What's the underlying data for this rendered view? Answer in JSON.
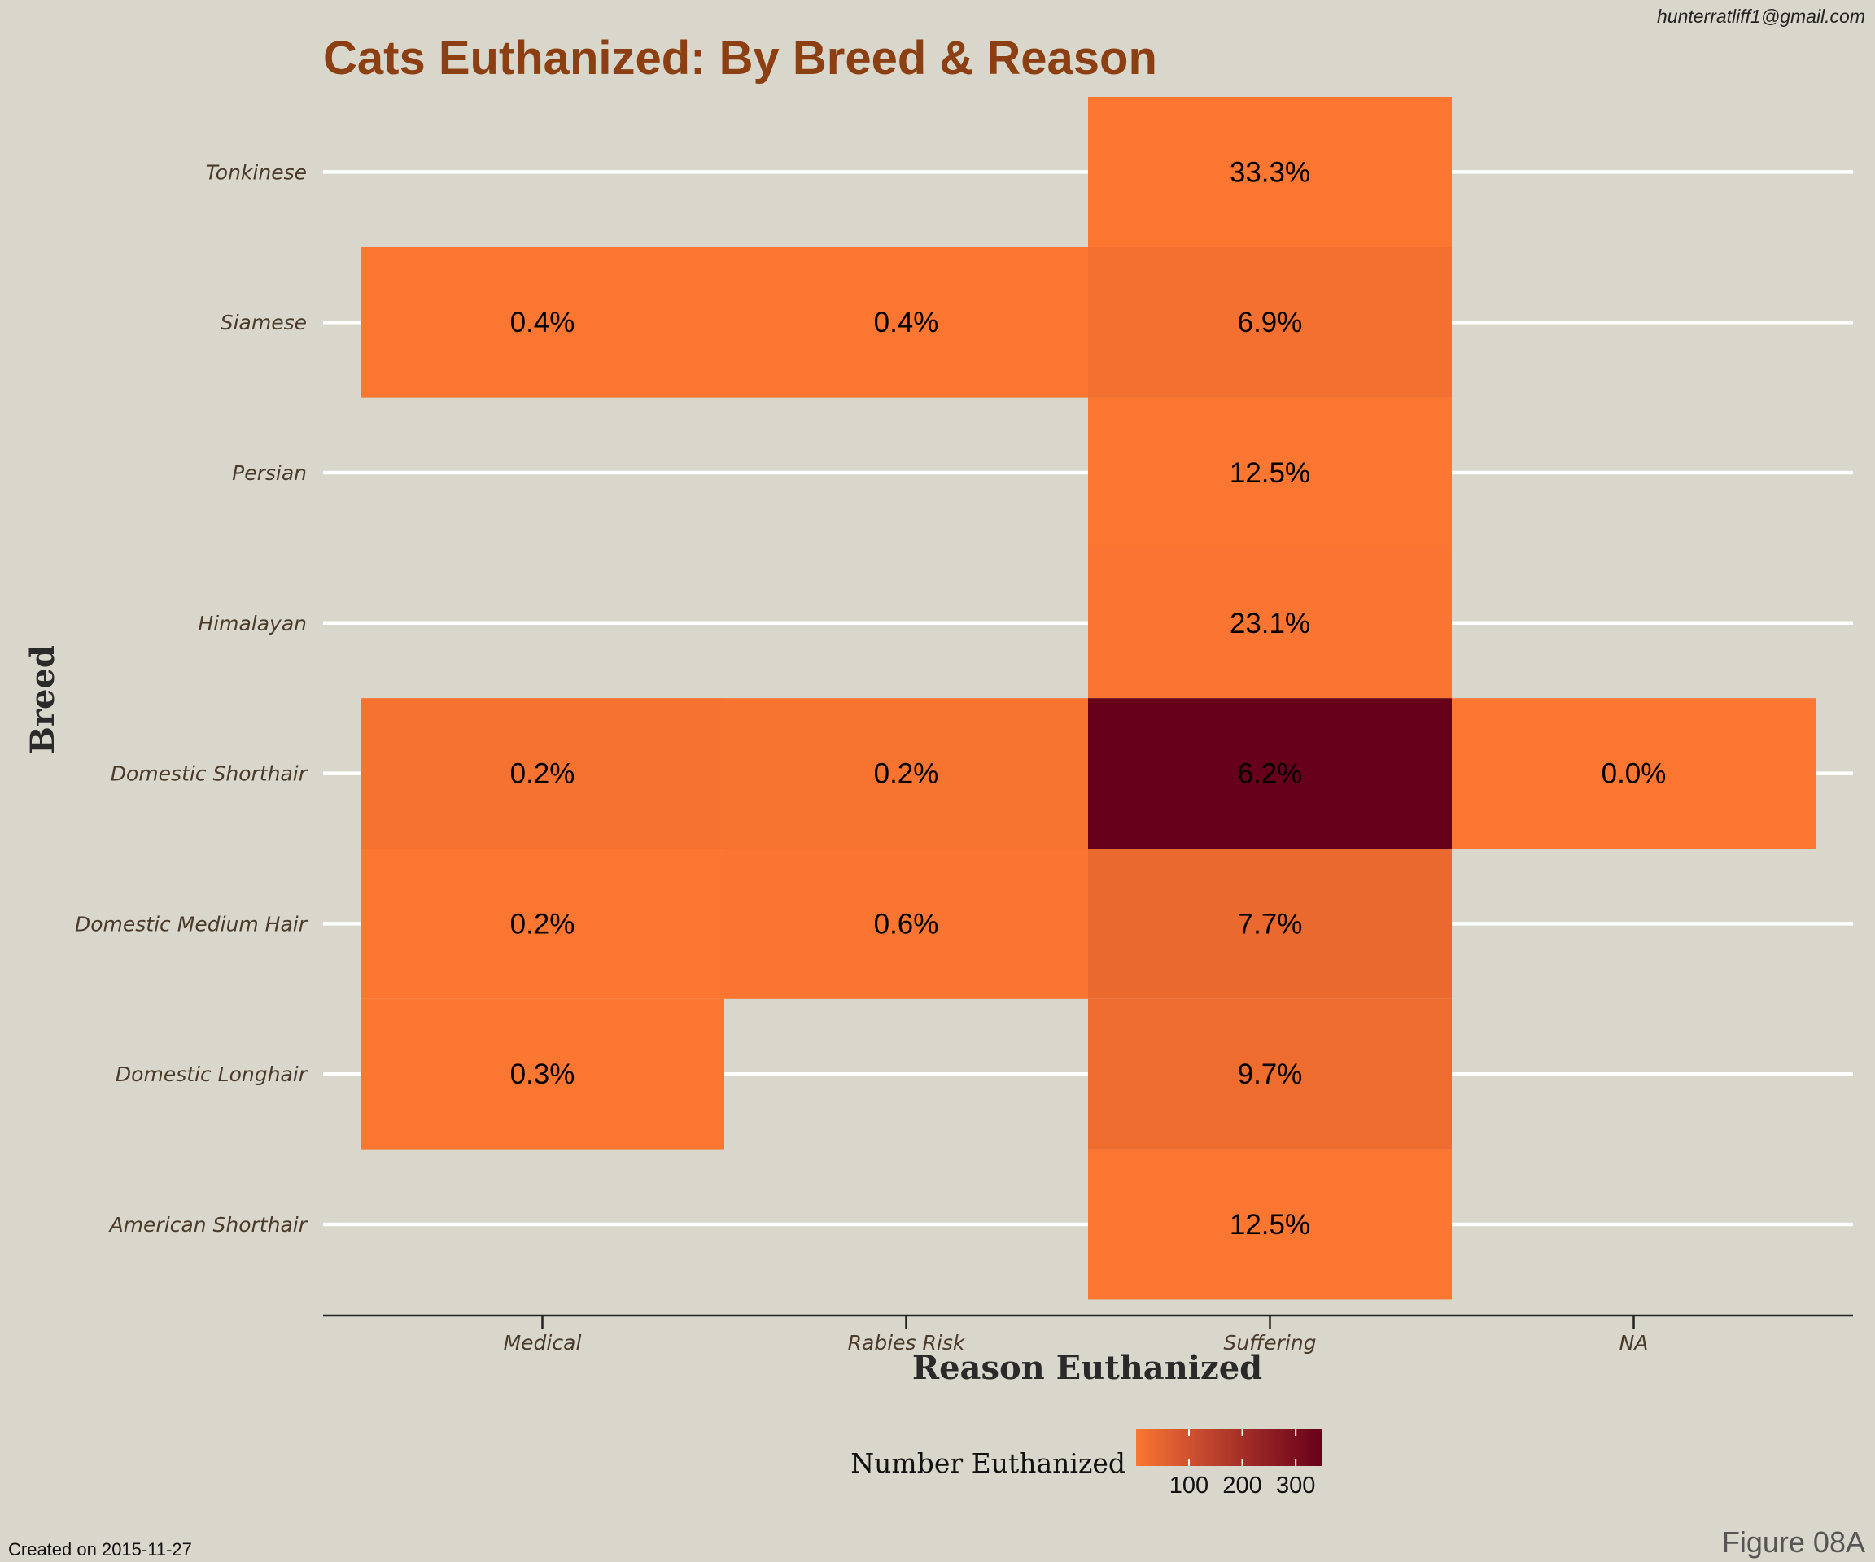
{
  "header": {
    "title": "Cats Euthanized: By Breed & Reason",
    "credit": "hunterratliff1@gmail.com"
  },
  "footer": {
    "created": "Created on 2015-11-27",
    "figure": "Figure 08A"
  },
  "colors": {
    "background": "#d9d7cb",
    "low": "#fb7631",
    "high": "#67001a",
    "gridline": "#ffffff",
    "title": "#8b3f12"
  },
  "chart_data": {
    "type": "heatmap",
    "xlabel": "Reason Euthanized",
    "ylabel": "Breed",
    "x_categories": [
      "Medical",
      "Rabies Risk",
      "Suffering",
      "NA"
    ],
    "y_categories": [
      "Tonkinese",
      "Siamese",
      "Persian",
      "Himalayan",
      "Domestic Shorthair",
      "Domestic Medium Hair",
      "Domestic Longhair",
      "American Shorthair"
    ],
    "cells": [
      {
        "breed": "Tonkinese",
        "reason": "Suffering",
        "count": 1,
        "label": "33.3%"
      },
      {
        "breed": "Siamese",
        "reason": "Medical",
        "count": 1,
        "label": "0.4%"
      },
      {
        "breed": "Siamese",
        "reason": "Rabies Risk",
        "count": 1,
        "label": "0.4%"
      },
      {
        "breed": "Siamese",
        "reason": "Suffering",
        "count": 18,
        "label": "6.9%"
      },
      {
        "breed": "Persian",
        "reason": "Suffering",
        "count": 2,
        "label": "12.5%"
      },
      {
        "breed": "Himalayan",
        "reason": "Suffering",
        "count": 3,
        "label": "23.1%"
      },
      {
        "breed": "Domestic Shorthair",
        "reason": "Medical",
        "count": 12,
        "label": "0.2%"
      },
      {
        "breed": "Domestic Shorthair",
        "reason": "Rabies Risk",
        "count": 11,
        "label": "0.2%"
      },
      {
        "breed": "Domestic Shorthair",
        "reason": "Suffering",
        "count": 350,
        "label": "6.2%"
      },
      {
        "breed": "Domestic Shorthair",
        "reason": "NA",
        "count": 1,
        "label": "0.0%"
      },
      {
        "breed": "Domestic Medium Hair",
        "reason": "Medical",
        "count": 1,
        "label": "0.2%"
      },
      {
        "breed": "Domestic Medium Hair",
        "reason": "Rabies Risk",
        "count": 3,
        "label": "0.6%"
      },
      {
        "breed": "Domestic Medium Hair",
        "reason": "Suffering",
        "count": 40,
        "label": "7.7%"
      },
      {
        "breed": "Domestic Longhair",
        "reason": "Medical",
        "count": 1,
        "label": "0.3%"
      },
      {
        "breed": "Domestic Longhair",
        "reason": "Suffering",
        "count": 30,
        "label": "9.7%"
      },
      {
        "breed": "American Shorthair",
        "reason": "Suffering",
        "count": 2,
        "label": "12.5%"
      }
    ],
    "legend": {
      "title": "Number Euthanized",
      "ticks": [
        100,
        200,
        300
      ],
      "range": [
        1,
        350
      ],
      "placement": "bottom"
    },
    "grid": true
  }
}
